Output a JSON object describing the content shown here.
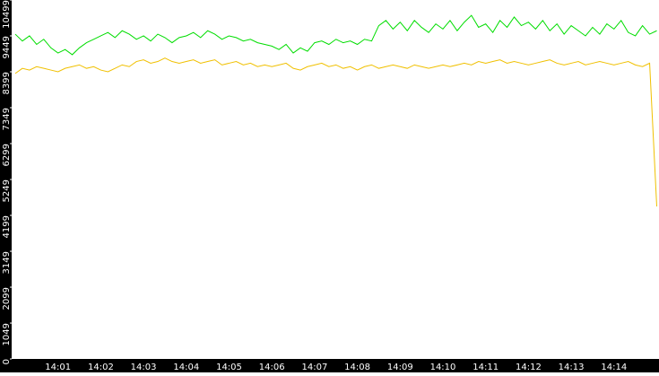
{
  "chart_data": {
    "type": "line",
    "categories": [
      null,
      null,
      null,
      null,
      null,
      null,
      "14:01",
      null,
      null,
      null,
      null,
      null,
      "14:02",
      null,
      null,
      null,
      null,
      null,
      "14:03",
      null,
      null,
      null,
      null,
      null,
      "14:04",
      null,
      null,
      null,
      null,
      null,
      "14:05",
      null,
      null,
      null,
      null,
      null,
      "14:06",
      null,
      null,
      null,
      null,
      null,
      "14:07",
      null,
      null,
      null,
      null,
      null,
      "14:08",
      null,
      null,
      null,
      null,
      null,
      "14:09",
      null,
      null,
      null,
      null,
      null,
      "14:10",
      null,
      null,
      null,
      null,
      null,
      "14:11",
      null,
      null,
      null,
      null,
      null,
      "14:12",
      null,
      null,
      null,
      null,
      null,
      "14:13",
      null,
      null,
      null,
      null,
      null,
      "14:14",
      null,
      null,
      null,
      null,
      null,
      null
    ],
    "series": [
      {
        "color": "#00dd00",
        "values": [
          9500,
          9300,
          9450,
          9200,
          9350,
          9100,
          8950,
          9050,
          8900,
          9100,
          9250,
          9350,
          9450,
          9550,
          9400,
          9600,
          9500,
          9350,
          9450,
          9300,
          9500,
          9400,
          9250,
          9400,
          9450,
          9550,
          9400,
          9600,
          9500,
          9350,
          9450,
          9400,
          9300,
          9350,
          9250,
          9200,
          9150,
          9050,
          9200,
          8950,
          9100,
          9000,
          9250,
          9300,
          9200,
          9350,
          9250,
          9300,
          9200,
          9350,
          9300,
          9750,
          9900,
          9650,
          9850,
          9600,
          9900,
          9700,
          9550,
          9800,
          9650,
          9900,
          9600,
          9850,
          10050,
          9700,
          9800,
          9550,
          9900,
          9700,
          10000,
          9750,
          9850,
          9650,
          9900,
          9600,
          9800,
          9500,
          9750,
          9600,
          9450,
          9700,
          9500,
          9800,
          9650,
          9900,
          9550,
          9450,
          9750,
          9500,
          9600
        ]
      },
      {
        "color": "#f0c000",
        "values": [
          8350,
          8500,
          8450,
          8550,
          8500,
          8450,
          8400,
          8500,
          8550,
          8600,
          8500,
          8550,
          8450,
          8400,
          8500,
          8600,
          8550,
          8700,
          8750,
          8650,
          8700,
          8800,
          8700,
          8650,
          8700,
          8750,
          8650,
          8700,
          8750,
          8600,
          8650,
          8700,
          8600,
          8650,
          8550,
          8600,
          8550,
          8600,
          8650,
          8500,
          8450,
          8550,
          8600,
          8650,
          8550,
          8600,
          8500,
          8550,
          8450,
          8550,
          8600,
          8500,
          8550,
          8600,
          8550,
          8500,
          8600,
          8550,
          8500,
          8550,
          8600,
          8550,
          8600,
          8650,
          8600,
          8700,
          8650,
          8700,
          8750,
          8650,
          8700,
          8650,
          8600,
          8650,
          8700,
          8750,
          8650,
          8600,
          8650,
          8700,
          8600,
          8650,
          8700,
          8650,
          8600,
          8650,
          8700,
          8600,
          8550,
          8650,
          4460
        ]
      }
    ],
    "ylim": [
      0,
      10499
    ],
    "yticks": [
      0,
      1049,
      2099,
      3149,
      4199,
      5249,
      6299,
      7349,
      8399,
      9449,
      10499
    ]
  }
}
